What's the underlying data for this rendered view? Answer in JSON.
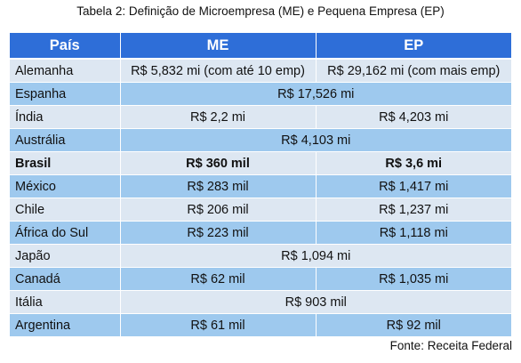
{
  "caption": "Tabela 2: Definição de Microempresa (ME) e Pequena Empresa (EP)",
  "headers": {
    "country": "País",
    "me": "ME",
    "ep": "EP"
  },
  "rows": [
    {
      "country": "Alemanha",
      "me": "R$ 5,832 mi (com até 10 emp)",
      "ep": "R$ 29,162 mi (com mais emp)"
    },
    {
      "country": "Espanha",
      "both": "R$ 17,526 mi"
    },
    {
      "country": "Índia",
      "me": "R$ 2,2 mi",
      "ep": "R$ 4,203 mi"
    },
    {
      "country": "Austrália",
      "both": "R$ 4,103 mi"
    },
    {
      "country": "Brasil",
      "me": "R$ 360 mil",
      "ep": "R$ 3,6 mi"
    },
    {
      "country": "México",
      "me": "R$ 283 mil",
      "ep": "R$ 1,417 mi"
    },
    {
      "country": "Chile",
      "me": "R$ 206 mil",
      "ep": "R$ 1,237 mi"
    },
    {
      "country": "África do Sul",
      "me": "R$ 223 mil",
      "ep": "R$ 1,118 mi"
    },
    {
      "country": "Japão",
      "both": "R$ 1,094 mi"
    },
    {
      "country": "Canadá",
      "me": "R$ 62 mil",
      "ep": "R$ 1,035 mi"
    },
    {
      "country": "Itália",
      "both": "R$ 903 mil"
    },
    {
      "country": "Argentina",
      "me": "R$ 61 mil",
      "ep": "R$ 92 mil"
    }
  ],
  "source": "Fonte: Receita Federal",
  "colors": {
    "header": "#2e6ed8",
    "row_alt": "#9ec9ee",
    "row_plain": "#dde7f2"
  }
}
